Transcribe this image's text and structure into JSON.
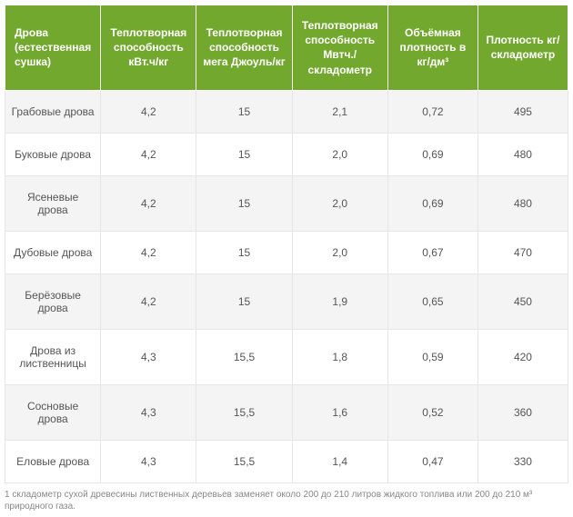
{
  "table": {
    "header_bg": "#73a82f",
    "header_fg": "#ffffff",
    "row_alt_bg": "#f4f4f4",
    "row_bg": "#ffffff",
    "cell_fg": "#555555",
    "border_color": "#e6e6e6",
    "header_fontsize": 12,
    "cell_fontsize": 12,
    "col_widths": [
      "17%",
      "17%",
      "17%",
      "17%",
      "16%",
      "16%"
    ],
    "columns": [
      "Дрова (естественная сушка)",
      "Теплотворная способность кВт.ч/кг",
      "Теплотворная способность мега Джоуль/кг",
      "Теплотворная способность Мвтч./складометр",
      "Объёмная плотность в кг/дм³",
      "Плотность кг/складометр"
    ],
    "rows": [
      [
        "Грабовые дрова",
        "4,2",
        "15",
        "2,1",
        "0,72",
        "495"
      ],
      [
        "Буковые дрова",
        "4,2",
        "15",
        "2,0",
        "0,69",
        "480"
      ],
      [
        "Ясеневые дрова",
        "4,2",
        "15",
        "2,0",
        "0,69",
        "480"
      ],
      [
        "Дубовые дрова",
        "4,2",
        "15",
        "2,0",
        "0,67",
        "470"
      ],
      [
        "Берёзовые дрова",
        "4,2",
        "15",
        "1,9",
        "0,65",
        "450"
      ],
      [
        "Дрова из лиственницы",
        "4,3",
        "15,5",
        "1,8",
        "0,59",
        "420"
      ],
      [
        "Сосновые дрова",
        "4,3",
        "15,5",
        "1,6",
        "0,52",
        "360"
      ],
      [
        "Еловые дрова",
        "4,3",
        "15,5",
        "1,4",
        "0,47",
        "330"
      ]
    ]
  },
  "footnote": "1 складометр сухой древесины лиственных деревьев заменяет около 200 до 210 литров жидкого топлива или 200 до 210 м³ природного газа."
}
